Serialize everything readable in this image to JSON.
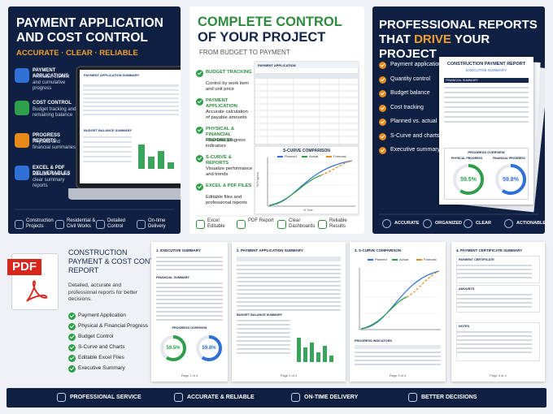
{
  "left_panel": {
    "title_lines": [
      "PAYMENT APPLICATION",
      "AND COST CONTROL"
    ],
    "tagline": "ACCURATE · CLEAR · RELIABLE",
    "features": [
      {
        "title": "PAYMENT APPLICATIONS",
        "text": "Previous, current and cumulative progress"
      },
      {
        "title": "COST CONTROL",
        "text": "Budget tracking and remaining balance"
      },
      {
        "title": "PROGRESS REPORTS",
        "text": "Physical and financial summaries"
      },
      {
        "title": "EXCEL & PDF DELIVERABLES",
        "text": "Editable files and clear summary reports"
      }
    ],
    "screen_title": "PAYMENT APPLICATION SUMMARY",
    "screen_subtitle": "BUDGET BALANCE SUMMARY",
    "footer": [
      "Construction Projects",
      "Residential & Civil Works",
      "Detailed Control",
      "On-time Delivery"
    ]
  },
  "center_panel": {
    "title_lines": [
      "COMPLETE CONTROL",
      "OF YOUR PROJECT"
    ],
    "subtitle": "FROM BUDGET TO PAYMENT",
    "features": [
      {
        "title": "BUDGET TRACKING",
        "text": "Control by work item and unit price"
      },
      {
        "title": "PAYMENT APPLICATION",
        "text": "Accurate calculation of payable amounts"
      },
      {
        "title": "PHYSICAL & FINANCIAL PROGRESS",
        "text": "Real-time progress indicators"
      },
      {
        "title": "S-CURVE & REPORTS",
        "text": "Visualize performance and trends"
      },
      {
        "title": "EXCEL & PDF FILES",
        "text": "Editable files and professional reports"
      }
    ],
    "table_title": "PAYMENT APPLICATION",
    "chart": {
      "title": "S-CURVE COMPARISON",
      "legend": [
        "Planned",
        "Actual",
        "Forecast"
      ],
      "x_label": "% Time",
      "y_label": "% Progress"
    },
    "footer": [
      "Excel Editable",
      "PDF Report",
      "Clear Dashboards",
      "Reliable Results"
    ]
  },
  "right_panel": {
    "title_line1": "PROFESSIONAL REPORTS",
    "title_line2": [
      "THAT",
      "DRIVE",
      "YOUR PROJECT"
    ],
    "items": [
      "Payment applications",
      "Quantity control",
      "Budget balance",
      "Cost tracking",
      "Planned vs. actual",
      "S-Curve and charts",
      "Executive summary"
    ],
    "report": {
      "title": "CONSTRUCTION PAYMENT REPORT",
      "subtitle": "EXECUTIVE SUMMARY",
      "section": "FINANCIAL SUMMARY",
      "overview": "PROGRESS OVERVIEW",
      "gauges": [
        {
          "label": "PHYSICAL PROGRESS",
          "value": 59.5,
          "value_label": "59.5%"
        },
        {
          "label": "FINANCIAL PROGRESS",
          "value": 59.8,
          "value_label": "59.8%"
        }
      ]
    },
    "footer": [
      "ACCURATE",
      "ORGANIZED",
      "CLEAR",
      "ACTIONABLE"
    ]
  },
  "report_section": {
    "icon_label": "PDF",
    "title_lines": [
      "CONSTRUCTION",
      "PAYMENT & COST CONTROL",
      "REPORT"
    ],
    "description": "Detailed, accurate and professional reports for better decisions.",
    "checklist": [
      "Payment Application",
      "Physical & Financial Progress",
      "Budget Control",
      "S-Curve and Charts",
      "Editable Excel Files",
      "Executive Summary"
    ],
    "pages": [
      {
        "title": "1. EXECUTIVE SUMMARY",
        "sections": [
          "FINANCIAL SUMMARY",
          "PROGRESS OVERVIEW"
        ],
        "gauges": [
          {
            "value": 59.5,
            "value_label": "59.5%"
          },
          {
            "value": 59.8,
            "value_label": "59.8%"
          }
        ],
        "footer": "Page 1 of 4"
      },
      {
        "title": "2. PAYMENT APPLICATION SUMMARY",
        "sections": [
          "BUDGET BALANCE SUMMARY"
        ],
        "footer": "Page 2 of 4"
      },
      {
        "title": "3. S-CURVE COMPARISON",
        "legend": [
          "Planned",
          "Actual",
          "Forecast"
        ],
        "sections": [
          "PROGRESS INDICATORS"
        ],
        "footer": "Page 3 of 4"
      },
      {
        "title": "4. PAYMENT CERTIFICATE SUMMARY",
        "sections": [
          "PAYMENT CERTIFICATE",
          "AMOUNTS",
          "NOTES"
        ],
        "footer": "Page 4 of 4"
      }
    ]
  },
  "bottom_bar": [
    "PROFESSIONAL SERVICE",
    "ACCURATE & RELIABLE",
    "ON-TIME DELIVERY",
    "BETTER DECISIONS"
  ]
}
